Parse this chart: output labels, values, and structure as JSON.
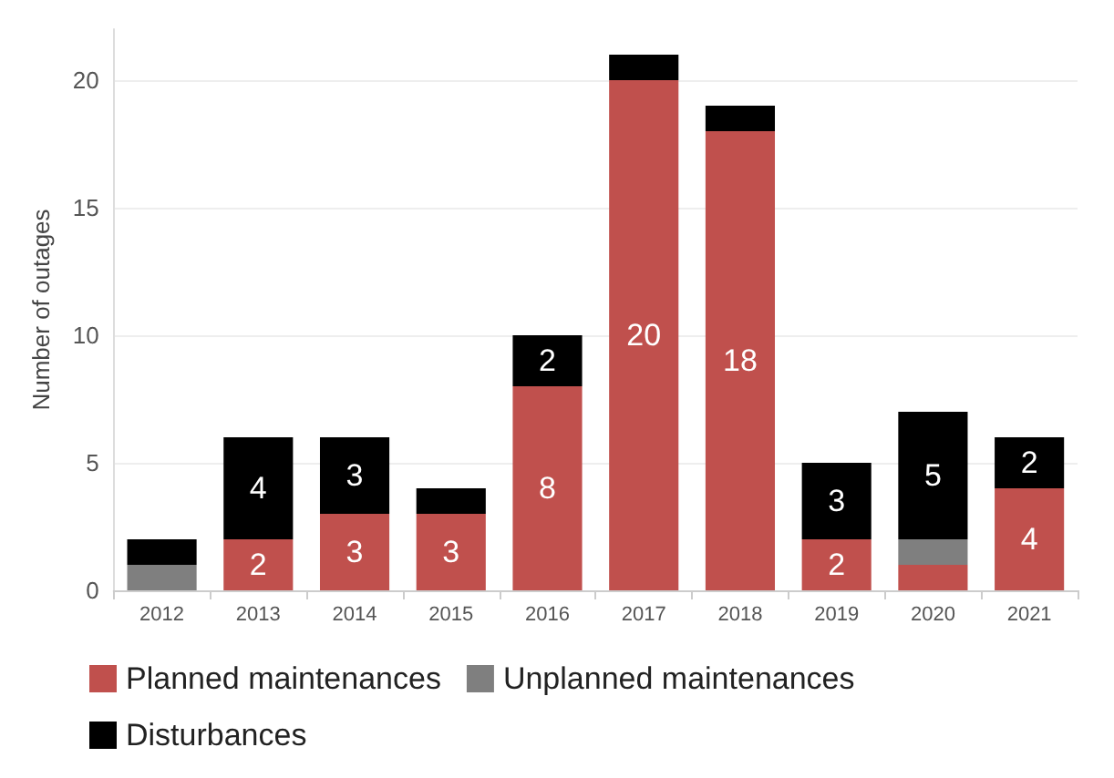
{
  "chart_data": {
    "type": "bar",
    "stacked": true,
    "ylabel": "Number of outages",
    "categories": [
      "2012",
      "2013",
      "2014",
      "2015",
      "2016",
      "2017",
      "2018",
      "2019",
      "2020",
      "2021"
    ],
    "series": [
      {
        "name": "Planned maintenances",
        "color": "#c0504d",
        "values": [
          0,
          2,
          3,
          3,
          8,
          20,
          18,
          2,
          1,
          4
        ],
        "value_labels": [
          null,
          "2",
          "3",
          "3",
          "8",
          "20",
          "18",
          "2",
          null,
          "4"
        ]
      },
      {
        "name": "Unplanned maintenances",
        "color": "#7f7f7f",
        "values": [
          1,
          0,
          0,
          0,
          0,
          0,
          0,
          0,
          1,
          0
        ],
        "value_labels": [
          null,
          null,
          null,
          null,
          null,
          null,
          null,
          null,
          null,
          null
        ]
      },
      {
        "name": "Disturbances",
        "color": "#000000",
        "values": [
          1,
          4,
          3,
          1,
          2,
          1,
          1,
          3,
          5,
          2
        ],
        "value_labels": [
          null,
          "4",
          "3",
          null,
          "2",
          null,
          null,
          "3",
          "5",
          "2"
        ]
      }
    ],
    "ylim": [
      0,
      22
    ],
    "yticks": [
      0,
      5,
      10,
      15,
      20
    ],
    "grid": "y",
    "legend": "bottom"
  }
}
